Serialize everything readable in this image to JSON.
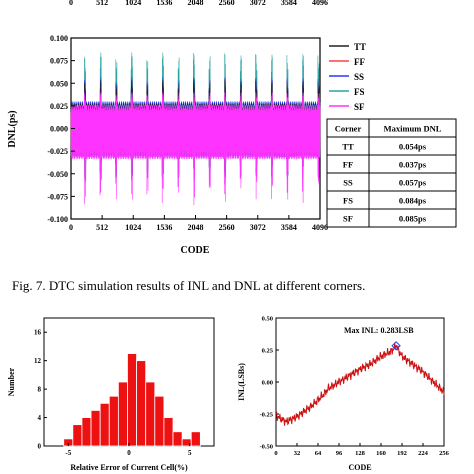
{
  "top_axis_strip": {
    "ticks": [
      "0",
      "512",
      "1024",
      "1536",
      "2048",
      "2560",
      "3072",
      "3584",
      "4096"
    ]
  },
  "caption": "Fig. 7. DTC simulation results of  INL and DNL at different corners.",
  "chart_data": [
    {
      "type": "line",
      "xlabel": "CODE",
      "ylabel": "DNL(ps)",
      "xlim": [
        0,
        4096
      ],
      "ylim": [
        -0.1,
        0.1
      ],
      "x_ticks": [
        "0",
        "512",
        "1024",
        "1536",
        "2048",
        "2560",
        "3072",
        "3584",
        "4096"
      ],
      "y_ticks": [
        "0.100",
        "0.075",
        "0.050",
        "0.025",
        "0.000",
        "-0.025",
        "-0.050",
        "-0.075",
        "-0.100"
      ],
      "series": [
        {
          "name": "TT",
          "color": "#222222",
          "max_dnl": 0.054
        },
        {
          "name": "FF",
          "color": "#ff4040",
          "max_dnl": 0.037
        },
        {
          "name": "SS",
          "color": "#3333ff",
          "max_dnl": 0.057
        },
        {
          "name": "FS",
          "color": "#2aa3a3",
          "max_dnl": 0.084
        },
        {
          "name": "SF",
          "color": "#ff33ff",
          "max_dnl": 0.085
        }
      ],
      "legend_position": "right",
      "table": {
        "headers": [
          "Corner",
          "Maximum DNL"
        ],
        "rows": [
          [
            "TT",
            "0.054ps"
          ],
          [
            "FF",
            "0.037ps"
          ],
          [
            "SS",
            "0.057ps"
          ],
          [
            "FS",
            "0.084ps"
          ],
          [
            "SF",
            "0.085ps"
          ]
        ]
      }
    },
    {
      "type": "bar",
      "xlabel": "Relative Error of Current Cell(%)",
      "ylabel": "Number",
      "xlim": [
        -7,
        7
      ],
      "ylim": [
        0,
        18
      ],
      "x_ticks": [
        "-5",
        "0",
        "5"
      ],
      "y_ticks": [
        "0",
        "4",
        "8",
        "12",
        "16"
      ],
      "bar_color": "#ee1111",
      "bins": [
        -5.0,
        -4.25,
        -3.5,
        -2.75,
        -2.0,
        -1.25,
        -0.5,
        0.25,
        1.0,
        1.75,
        2.5,
        3.25,
        4.0,
        4.75,
        5.5
      ],
      "values": [
        1,
        3,
        4,
        5,
        6,
        7,
        9,
        13,
        12,
        9,
        7,
        4,
        2,
        1,
        2
      ]
    },
    {
      "type": "line",
      "xlabel": "CODE",
      "ylabel": "INL(LSBs)",
      "xlim": [
        0,
        256
      ],
      "ylim": [
        -0.5,
        0.5
      ],
      "x_ticks": [
        "0",
        "32",
        "64",
        "96",
        "128",
        "160",
        "192",
        "224",
        "256"
      ],
      "y_ticks": [
        "0.50",
        "0.25",
        "0.00",
        "-0.25",
        "-0.50"
      ],
      "line_color": "#cc1111",
      "annotation": "Max INL: 0.283LSB",
      "peak": {
        "x": 183,
        "y": 0.283
      },
      "x": [
        0,
        8,
        16,
        24,
        32,
        40,
        48,
        56,
        64,
        72,
        80,
        96,
        112,
        128,
        144,
        160,
        176,
        183,
        192,
        208,
        224,
        240,
        256
      ],
      "y": [
        -0.26,
        -0.29,
        -0.31,
        -0.29,
        -0.27,
        -0.24,
        -0.21,
        -0.18,
        -0.14,
        -0.1,
        -0.05,
        0.0,
        0.05,
        0.1,
        0.14,
        0.2,
        0.24,
        0.283,
        0.2,
        0.14,
        0.08,
        0.0,
        -0.08
      ]
    }
  ]
}
